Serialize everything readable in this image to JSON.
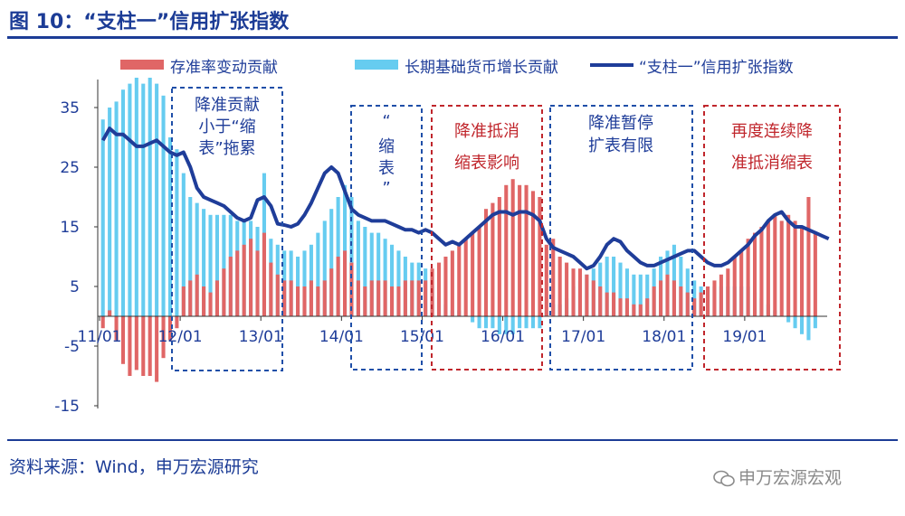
{
  "title": "图 10：“支柱一”信用扩张指数",
  "source": "资料来源：Wind，申万宏源研究",
  "watermark": "申万宏源宏观",
  "colors": {
    "rrr": "#e06666",
    "base_money": "#66ccf0",
    "index": "#1f3d99",
    "blue_box": "#1f4fa8",
    "red_box": "#c0262c"
  },
  "chart_data": {
    "type": "bar",
    "ylim": [
      -15,
      40
    ],
    "yticks": [
      35,
      25,
      15,
      5,
      -5,
      -15
    ],
    "xticks": [
      {
        "label": "11/01",
        "x": 0
      },
      {
        "label": "12/01",
        "x": 12
      },
      {
        "label": "13/01",
        "x": 24
      },
      {
        "label": "14/01",
        "x": 36
      },
      {
        "label": "15/01",
        "x": 48
      },
      {
        "label": "16/01",
        "x": 60
      },
      {
        "label": "17/01",
        "x": 72
      },
      {
        "label": "18/01",
        "x": 84
      },
      {
        "label": "19/01",
        "x": 96
      }
    ],
    "x_range": [
      0,
      107
    ],
    "legend": [
      "存准率变动贡献",
      "长期基础货币增长贡献",
      "“支柱一”信用扩张指数"
    ],
    "series": [
      {
        "name": "存准率变动贡献",
        "type": "bar",
        "values": [
          -2,
          1,
          -4,
          -8,
          -10,
          -9,
          -10,
          -10,
          -11,
          -7,
          -4,
          -2,
          5,
          6,
          7,
          5,
          4,
          6,
          8,
          10,
          11,
          12,
          13,
          11,
          14,
          9,
          7,
          6,
          6,
          5,
          5,
          6,
          5,
          6,
          8,
          10,
          11,
          9,
          6,
          5,
          6,
          6,
          6,
          5,
          5,
          6,
          6,
          6,
          6,
          8,
          9,
          10,
          11,
          12,
          13,
          14,
          15,
          18,
          19,
          20,
          22,
          23,
          22,
          22,
          21,
          20,
          12,
          13,
          10,
          9,
          8,
          8,
          7,
          6,
          5,
          4,
          4,
          3,
          3,
          2,
          2,
          3,
          5,
          6,
          7,
          6,
          5,
          4,
          3,
          4,
          5,
          6,
          7,
          8,
          10,
          11,
          13,
          14,
          15,
          16,
          17,
          16,
          17,
          16,
          15,
          20,
          14
        ]
      },
      {
        "name": "长期基础货币增长贡献",
        "type": "bar",
        "values": [
          33,
          35,
          36,
          38,
          39,
          40,
          39,
          40,
          39,
          37,
          30,
          28,
          24,
          20,
          19,
          18,
          17,
          17,
          17,
          17,
          16,
          16,
          16,
          15,
          24,
          13,
          12,
          11,
          11,
          10,
          11,
          12,
          14,
          16,
          18,
          20,
          22,
          20,
          16,
          15,
          14,
          14,
          13,
          12,
          11,
          10,
          9,
          9,
          8,
          5,
          3,
          2,
          1,
          1,
          0,
          -1,
          -2,
          -2,
          -2,
          -3,
          -3,
          -3,
          -2,
          -2,
          -2,
          -2,
          1,
          2,
          2,
          3,
          5,
          6,
          7,
          8,
          9,
          10,
          10,
          9,
          8,
          7,
          7,
          7,
          8,
          10,
          11,
          12,
          10,
          8,
          6,
          5,
          5,
          5,
          5,
          5,
          5,
          5,
          5,
          4,
          3,
          2,
          1,
          0,
          -1,
          -2,
          -3,
          -4,
          -2
        ]
      },
      {
        "name": "“支柱一”信用扩张指数",
        "type": "line",
        "values": [
          29.5,
          31.5,
          30.5,
          30.5,
          29.5,
          28.5,
          28.5,
          29,
          29.5,
          28.5,
          27.5,
          27,
          27.5,
          25,
          21.5,
          20,
          19.5,
          19,
          18.5,
          17.5,
          16.5,
          16,
          16.5,
          19.5,
          20,
          18.5,
          15.5,
          15.3,
          15,
          15.5,
          17,
          19,
          21.5,
          24,
          25,
          24,
          21,
          18,
          17,
          16.5,
          16,
          16,
          16,
          15.5,
          15,
          14.5,
          14.5,
          14,
          14.5,
          14,
          13,
          12,
          12.5,
          12,
          13,
          14,
          15,
          16,
          17,
          17.5,
          17.5,
          17,
          17.5,
          17.5,
          17,
          16,
          13,
          11.5,
          11,
          10.5,
          10,
          9,
          8,
          8.5,
          10,
          12,
          13,
          12.5,
          11,
          10,
          9,
          8.5,
          8.5,
          9,
          9.5,
          10,
          10.5,
          11,
          11,
          10,
          9,
          8.5,
          8.5,
          9,
          10,
          11,
          12,
          13.5,
          14.5,
          16,
          17,
          17.5,
          16,
          15,
          15,
          14.5,
          14,
          13.5,
          13
        ]
      }
    ],
    "annotations": [
      {
        "text": "降准贡献小于“缩表”拖累",
        "box_color": "blue"
      },
      {
        "text": "“缩表”",
        "box_color": "blue"
      },
      {
        "text": "降准抵消缩表影响",
        "box_color": "red"
      },
      {
        "text": "降准暂停扩表有限",
        "box_color": "blue"
      },
      {
        "text": "再度连续降准抵消缩表",
        "box_color": "red"
      }
    ]
  }
}
